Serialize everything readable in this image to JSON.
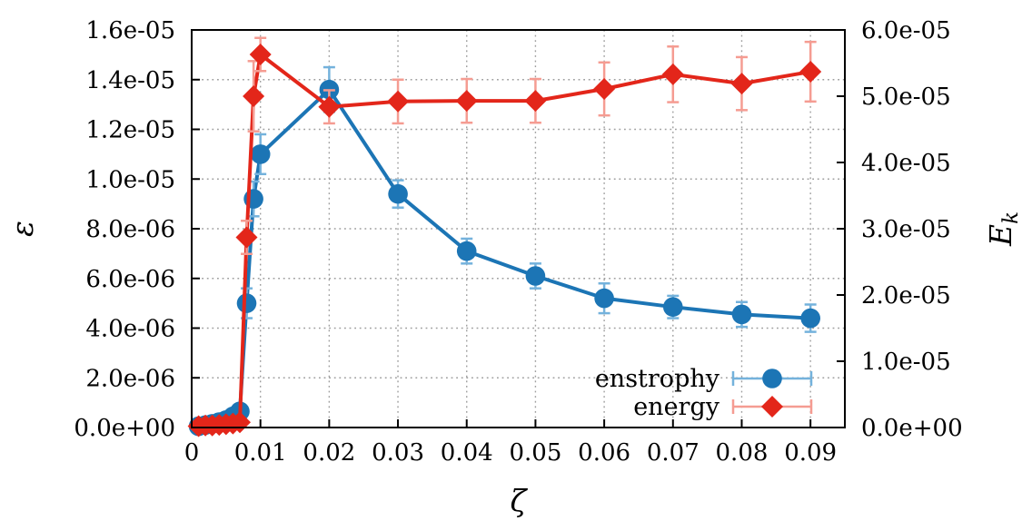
{
  "figure": {
    "background": "#ffffff",
    "axis_color": "#000000",
    "grid_color": "#9e9e9e"
  },
  "chart_data": {
    "type": "line",
    "title": "",
    "xlabel": "ζ",
    "ylabel": "ε",
    "y2label": "E",
    "y2label_sub": "k",
    "grid": true,
    "legend_position": "bottom-right",
    "xlim": [
      0,
      0.095
    ],
    "ylim": [
      0,
      1.6e-05
    ],
    "y2lim": [
      0,
      6e-05
    ],
    "xticks": [
      0,
      0.01,
      0.02,
      0.03,
      0.04,
      0.05,
      0.06,
      0.07,
      0.08,
      0.09
    ],
    "xtick_labels": [
      "0",
      "0.01",
      "0.02",
      "0.03",
      "0.04",
      "0.05",
      "0.06",
      "0.07",
      "0.08",
      "0.09"
    ],
    "yticks": [
      0,
      2e-06,
      4e-06,
      6e-06,
      8e-06,
      1e-05,
      1.2e-05,
      1.4e-05,
      1.6e-05
    ],
    "ytick_labels": [
      "0.0e+00",
      "2.0e-06",
      "4.0e-06",
      "6.0e-06",
      "8.0e-06",
      "1.0e-05",
      "1.2e-05",
      "1.4e-05",
      "1.6e-05"
    ],
    "y2ticks": [
      0,
      1e-05,
      2e-05,
      3e-05,
      4e-05,
      5e-05,
      6e-05
    ],
    "y2tick_labels": [
      "0.0e+00",
      "1.0e-05",
      "2.0e-05",
      "3.0e-05",
      "4.0e-05",
      "5.0e-05",
      "6.0e-05"
    ],
    "series": [
      {
        "name": "enstrophy",
        "axis": "left",
        "marker": "circle",
        "color": "#1c75b5",
        "light_color": "#74b2dc",
        "x": [
          0.001,
          0.002,
          0.003,
          0.004,
          0.005,
          0.006,
          0.007,
          0.008,
          0.009,
          0.01,
          0.02,
          0.03,
          0.04,
          0.05,
          0.06,
          0.07,
          0.08,
          0.09
        ],
        "y": [
          5e-08,
          1e-07,
          1.5e-07,
          2.2e-07,
          3e-07,
          4.5e-07,
          6.5e-07,
          5e-06,
          9.2e-06,
          1.1e-05,
          1.36e-05,
          9.4e-06,
          7.1e-06,
          6.1e-06,
          5.2e-06,
          4.85e-06,
          4.55e-06,
          4.4e-06
        ],
        "yerr": [
          3e-08,
          3e-08,
          4e-08,
          5e-08,
          6e-08,
          1e-07,
          1.5e-07,
          6e-07,
          7e-07,
          8e-07,
          9e-07,
          5.5e-07,
          5e-07,
          5e-07,
          6e-07,
          4.5e-07,
          5e-07,
          5.5e-07
        ]
      },
      {
        "name": "energy",
        "axis": "right",
        "marker": "diamond",
        "color": "#e3261a",
        "light_color": "#f59c92",
        "x": [
          0.001,
          0.002,
          0.003,
          0.004,
          0.005,
          0.006,
          0.007,
          0.008,
          0.009,
          0.01,
          0.02,
          0.03,
          0.04,
          0.05,
          0.06,
          0.07,
          0.08,
          0.09
        ],
        "y": [
          2e-07,
          3e-07,
          3e-07,
          4e-07,
          5e-07,
          6e-07,
          8e-07,
          2.87e-05,
          5e-05,
          5.63e-05,
          4.84e-05,
          4.92e-05,
          4.93e-05,
          4.93e-05,
          5.11e-05,
          5.33e-05,
          5.19e-05,
          5.37e-05
        ],
        "yerr": [
          2e-07,
          2e-07,
          3e-07,
          3e-07,
          4e-07,
          4e-07,
          5e-07,
          2.5e-06,
          5.3e-06,
          2.5e-06,
          2.5e-06,
          3.3e-06,
          3.3e-06,
          3.3e-06,
          4e-06,
          4.2e-06,
          4e-06,
          4.5e-06
        ]
      }
    ],
    "legend": {
      "items": [
        "enstrophy",
        "energy"
      ]
    }
  }
}
